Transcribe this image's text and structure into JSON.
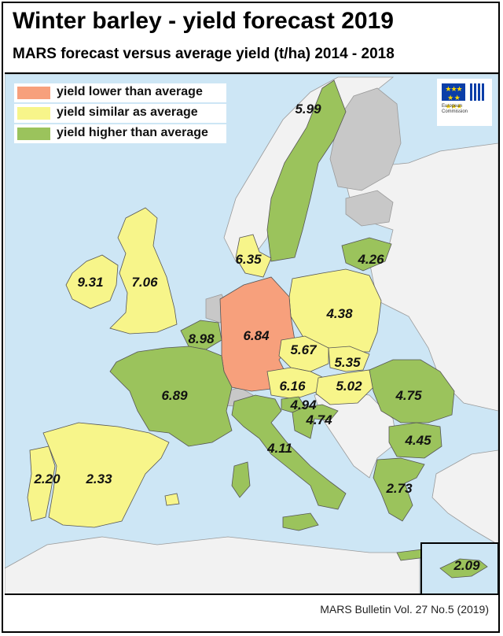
{
  "title": "Winter barley - yield forecast 2019",
  "subtitle": "MARS forecast versus average yield (t/ha) 2014 - 2018",
  "footer": "MARS Bulletin Vol. 27 No.5 (2019)",
  "colors": {
    "sea": "#cde6f5",
    "lower": "#f7a07c",
    "similar": "#f7f58a",
    "higher": "#9bc35c",
    "no_data": "#c8c8c8",
    "non_eu": "#f2f2f2",
    "border": "#555555"
  },
  "legend": [
    {
      "label": "yield lower than average",
      "category": "lower"
    },
    {
      "label": "yield similar as average",
      "category": "similar"
    },
    {
      "label": "yield higher than average",
      "category": "higher"
    }
  ],
  "logo": {
    "icon": "european-commission-logo",
    "text_line1": "European",
    "text_line2": "Commission"
  },
  "regions": [
    {
      "id": "sweden",
      "value": "5.99",
      "category": "higher"
    },
    {
      "id": "denmark",
      "value": "6.35",
      "category": "similar"
    },
    {
      "id": "lithuania",
      "value": "4.26",
      "category": "higher"
    },
    {
      "id": "ireland",
      "value": "9.31",
      "category": "similar"
    },
    {
      "id": "united-kingdom",
      "value": "7.06",
      "category": "similar"
    },
    {
      "id": "poland",
      "value": "4.38",
      "category": "similar"
    },
    {
      "id": "belgium",
      "value": "8.98",
      "category": "higher"
    },
    {
      "id": "germany",
      "value": "6.84",
      "category": "lower"
    },
    {
      "id": "czechia",
      "value": "5.67",
      "category": "similar"
    },
    {
      "id": "slovakia",
      "value": "5.35",
      "category": "similar"
    },
    {
      "id": "austria",
      "value": "6.16",
      "category": "similar"
    },
    {
      "id": "hungary",
      "value": "5.02",
      "category": "similar"
    },
    {
      "id": "france",
      "value": "6.89",
      "category": "higher"
    },
    {
      "id": "romania",
      "value": "4.75",
      "category": "higher"
    },
    {
      "id": "slovenia",
      "value": "4.94",
      "category": "higher"
    },
    {
      "id": "croatia",
      "value": "4.74",
      "category": "higher"
    },
    {
      "id": "bulgaria",
      "value": "4.45",
      "category": "higher"
    },
    {
      "id": "italy",
      "value": "4.11",
      "category": "higher"
    },
    {
      "id": "portugal",
      "value": "2.20",
      "category": "similar"
    },
    {
      "id": "spain",
      "value": "2.33",
      "category": "similar"
    },
    {
      "id": "greece",
      "value": "2.73",
      "category": "higher"
    },
    {
      "id": "cyprus",
      "value": "2.09",
      "category": "higher"
    }
  ]
}
